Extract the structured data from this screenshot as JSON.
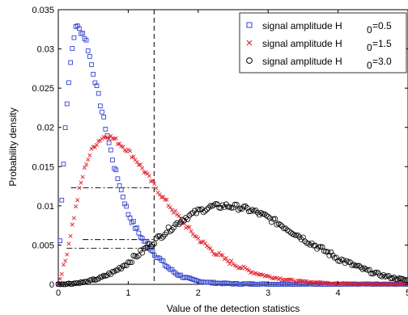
{
  "chart_data": {
    "type": "scatter",
    "xlabel": "Value of the detection statistics",
    "ylabel": "Probability density",
    "xlim": [
      0,
      5
    ],
    "ylim": [
      0,
      0.035
    ],
    "x_ticks": [
      "0",
      "1",
      "2",
      "3",
      "4",
      "5"
    ],
    "y_ticks": [
      "0",
      "0.005",
      "0.01",
      "0.015",
      "0.02",
      "0.025",
      "0.03",
      "0.035"
    ],
    "grid": false,
    "legend_position": "top-right",
    "legend": [
      {
        "label": "signal amplitude H",
        "subscript": "0",
        "value_text": "=0.5",
        "marker": "square",
        "color": "#3344cc"
      },
      {
        "label": "signal amplitude H",
        "subscript": "0",
        "value_text": "=1.5",
        "marker": "x",
        "color": "#e0202a"
      },
      {
        "label": "signal amplitude H",
        "subscript": "0",
        "value_text": "=3.0",
        "marker": "circle",
        "color": "#000000"
      }
    ],
    "threshold_x": 1.37,
    "reference_lines": [
      {
        "y": 0.0123,
        "x_start": 0.18
      },
      {
        "y": 0.0057,
        "x_start": 0.35
      },
      {
        "y": 0.0046,
        "x_start": 0.12
      }
    ],
    "series": [
      {
        "marker": "square",
        "color": "#3344cc",
        "x": [
          0.0,
          0.05,
          0.1,
          0.15,
          0.2,
          0.25,
          0.3,
          0.35,
          0.4,
          0.45,
          0.5,
          0.55,
          0.6,
          0.65,
          0.7,
          0.75,
          0.8,
          0.85,
          0.9,
          0.95,
          1.0,
          1.1,
          1.2,
          1.3,
          1.4,
          1.5,
          1.6,
          1.7,
          1.8,
          1.9,
          2.0,
          2.2,
          2.4,
          2.6,
          2.8,
          3.0,
          3.5,
          4.0,
          4.5,
          5.0
        ],
        "y": [
          0.0,
          0.011,
          0.02,
          0.026,
          0.03,
          0.033,
          0.0325,
          0.032,
          0.031,
          0.029,
          0.027,
          0.025,
          0.023,
          0.021,
          0.019,
          0.017,
          0.015,
          0.0135,
          0.012,
          0.0105,
          0.009,
          0.0073,
          0.0058,
          0.0048,
          0.0037,
          0.0027,
          0.0019,
          0.0013,
          0.0009,
          0.0006,
          0.0004,
          0.0002,
          0.0001,
          5e-05,
          3e-05,
          2e-05,
          1e-05,
          0.0,
          0.0,
          0.0
        ]
      },
      {
        "marker": "x",
        "color": "#e0202a",
        "x": [
          0.0,
          0.1,
          0.2,
          0.3,
          0.4,
          0.5,
          0.6,
          0.7,
          0.8,
          0.9,
          1.0,
          1.1,
          1.2,
          1.3,
          1.4,
          1.5,
          1.6,
          1.7,
          1.8,
          1.9,
          2.0,
          2.2,
          2.4,
          2.6,
          2.8,
          3.0,
          3.2,
          3.4,
          3.6,
          3.8,
          4.0,
          4.2,
          4.4,
          4.6,
          4.8,
          5.0
        ],
        "y": [
          0.0,
          0.003,
          0.0075,
          0.012,
          0.0155,
          0.0175,
          0.0185,
          0.019,
          0.0185,
          0.0178,
          0.017,
          0.016,
          0.0148,
          0.0135,
          0.0123,
          0.011,
          0.0099,
          0.0088,
          0.0077,
          0.0067,
          0.0058,
          0.0043,
          0.0031,
          0.0022,
          0.0015,
          0.001,
          0.0007,
          0.0004,
          0.0003,
          0.0002,
          0.0001,
          0.0001,
          0.0,
          0.0,
          0.0,
          0.0
        ]
      },
      {
        "marker": "circle",
        "color": "#000000",
        "x": [
          0.0,
          0.2,
          0.4,
          0.6,
          0.8,
          1.0,
          1.2,
          1.4,
          1.6,
          1.8,
          2.0,
          2.2,
          2.4,
          2.6,
          2.8,
          3.0,
          3.2,
          3.4,
          3.6,
          3.8,
          4.0,
          4.2,
          4.4,
          4.6,
          4.8,
          5.0
        ],
        "y": [
          0.0,
          0.0001,
          0.0003,
          0.0008,
          0.0016,
          0.0028,
          0.0042,
          0.0057,
          0.0071,
          0.0084,
          0.0093,
          0.0099,
          0.01,
          0.0098,
          0.0093,
          0.0085,
          0.0075,
          0.0064,
          0.0053,
          0.0043,
          0.0033,
          0.0025,
          0.0018,
          0.0012,
          0.0008,
          0.0005
        ]
      }
    ]
  }
}
